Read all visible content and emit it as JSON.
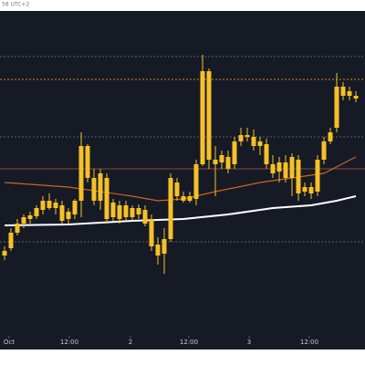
{
  "chart_data": {
    "type": "candlestick",
    "header_text": "58 UTC+2",
    "x": [
      0,
      1,
      2,
      3,
      4,
      5,
      6,
      7,
      8,
      9,
      10,
      11,
      12,
      13,
      14,
      15,
      16,
      17,
      18,
      19,
      20,
      21,
      22,
      23,
      24,
      25,
      26,
      27,
      28,
      29,
      30,
      31,
      32,
      33,
      34,
      35,
      36,
      37,
      38,
      39,
      40,
      41,
      42,
      43,
      44,
      45,
      46,
      47,
      48,
      49,
      50,
      51,
      52,
      53,
      54,
      55
    ],
    "open": [
      93,
      96,
      113,
      123,
      128,
      131,
      138,
      148,
      140,
      143,
      128,
      133,
      148,
      208,
      173,
      148,
      173,
      130,
      143,
      130,
      140,
      133,
      138,
      128,
      100,
      90,
      106,
      168,
      153,
      148,
      150,
      188,
      290,
      193,
      190,
      196,
      188,
      213,
      220,
      218,
      208,
      210,
      188,
      180,
      190,
      173,
      193,
      158,
      163,
      158,
      193,
      213,
      228,
      273,
      268,
      263
    ],
    "high": [
      98,
      118,
      128,
      133,
      136,
      143,
      153,
      156,
      150,
      148,
      140,
      150,
      223,
      210,
      183,
      183,
      178,
      150,
      148,
      148,
      143,
      144,
      143,
      133,
      108,
      118,
      178,
      173,
      158,
      158,
      193,
      308,
      293,
      208,
      203,
      203,
      218,
      228,
      228,
      226,
      218,
      216,
      198,
      196,
      198,
      200,
      198,
      168,
      168,
      198,
      218,
      228,
      288,
      278,
      273,
      268
    ],
    "low": [
      83,
      93,
      110,
      118,
      123,
      128,
      133,
      138,
      133,
      123,
      123,
      128,
      130,
      168,
      143,
      138,
      123,
      126,
      123,
      126,
      126,
      128,
      120,
      93,
      78,
      68,
      103,
      148,
      146,
      146,
      143,
      186,
      183,
      153,
      183,
      178,
      183,
      208,
      213,
      203,
      198,
      183,
      173,
      168,
      168,
      153,
      148,
      153,
      150,
      153,
      188,
      210,
      223,
      258,
      258,
      256
    ],
    "close": [
      88,
      113,
      123,
      130,
      132,
      140,
      148,
      140,
      146,
      126,
      136,
      148,
      208,
      173,
      148,
      178,
      128,
      146,
      128,
      143,
      130,
      140,
      123,
      98,
      88,
      106,
      173,
      153,
      148,
      153,
      188,
      290,
      193,
      188,
      198,
      183,
      213,
      220,
      218,
      208,
      213,
      188,
      178,
      190,
      173,
      196,
      156,
      163,
      156,
      193,
      213,
      223,
      273,
      263,
      263,
      260
    ],
    "color": "#f5c02a",
    "lines": [
      {
        "color": "#c8642a",
        "x": [
          0,
          10,
          20,
          24,
          28,
          33,
          40,
          45,
          50,
          55
        ],
        "values": [
          168,
          163,
          153,
          148,
          150,
          158,
          168,
          173,
          178,
          196
        ]
      },
      {
        "color": "#ffffff",
        "x": [
          0,
          10,
          20,
          28,
          35,
          42,
          48,
          52,
          55
        ],
        "values": [
          121,
          122,
          126,
          128,
          133,
          140,
          143,
          148,
          153
        ]
      }
    ],
    "hlines": [
      {
        "value": 306,
        "color": "#5a5f6e",
        "style": "dotted"
      },
      {
        "value": 281,
        "color": "#c88a2a",
        "style": "dotted"
      },
      {
        "value": 218,
        "color": "#5a5f6e",
        "style": "dotted"
      },
      {
        "value": 183,
        "color": "#8a4a3a",
        "style": "solid"
      },
      {
        "value": 103,
        "color": "#5a5f6e",
        "style": "dotted"
      }
    ],
    "xlim": [
      -0.714,
      56.43
    ],
    "ylim": [
      0,
      356
    ],
    "xticks": [
      {
        "value": 0.71,
        "label": "Oct"
      },
      {
        "value": 10.14,
        "label": "12:00"
      },
      {
        "value": 19.71,
        "label": "2"
      },
      {
        "value": 28.86,
        "label": "12:00"
      },
      {
        "value": 38.29,
        "label": "3"
      },
      {
        "value": 47.71,
        "label": "12:00"
      }
    ],
    "background": "#161a25"
  }
}
